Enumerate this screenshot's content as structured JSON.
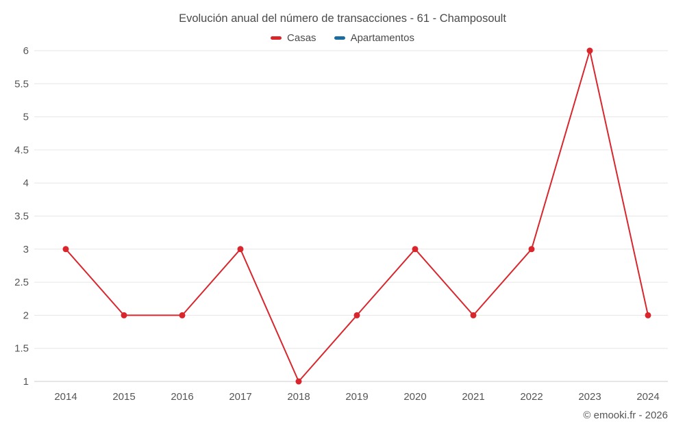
{
  "chart_data": {
    "type": "line",
    "title": "Evolución anual del número de transacciones - 61 - Champosoult",
    "categories": [
      "2014",
      "2015",
      "2016",
      "2017",
      "2018",
      "2019",
      "2020",
      "2021",
      "2022",
      "2023",
      "2024"
    ],
    "series": [
      {
        "name": "Casas",
        "color": "#d8262c",
        "values": [
          3,
          2,
          2,
          3,
          1,
          2,
          3,
          2,
          3,
          6,
          2
        ]
      },
      {
        "name": "Apartamentos",
        "color": "#1b6d9d",
        "values": []
      }
    ],
    "ylim": [
      1,
      6
    ],
    "ytick_step": 0.5,
    "xlabel": "",
    "ylabel": "",
    "grid": "horizontal",
    "legend_position": "top-center",
    "colors": {
      "gridline": "#e6e6e6",
      "axis_line": "#cccccc",
      "title_text": "#4a4a4a",
      "tick_text": "#555555"
    }
  },
  "footer": {
    "copyright": "© emooki.fr - 2026"
  }
}
